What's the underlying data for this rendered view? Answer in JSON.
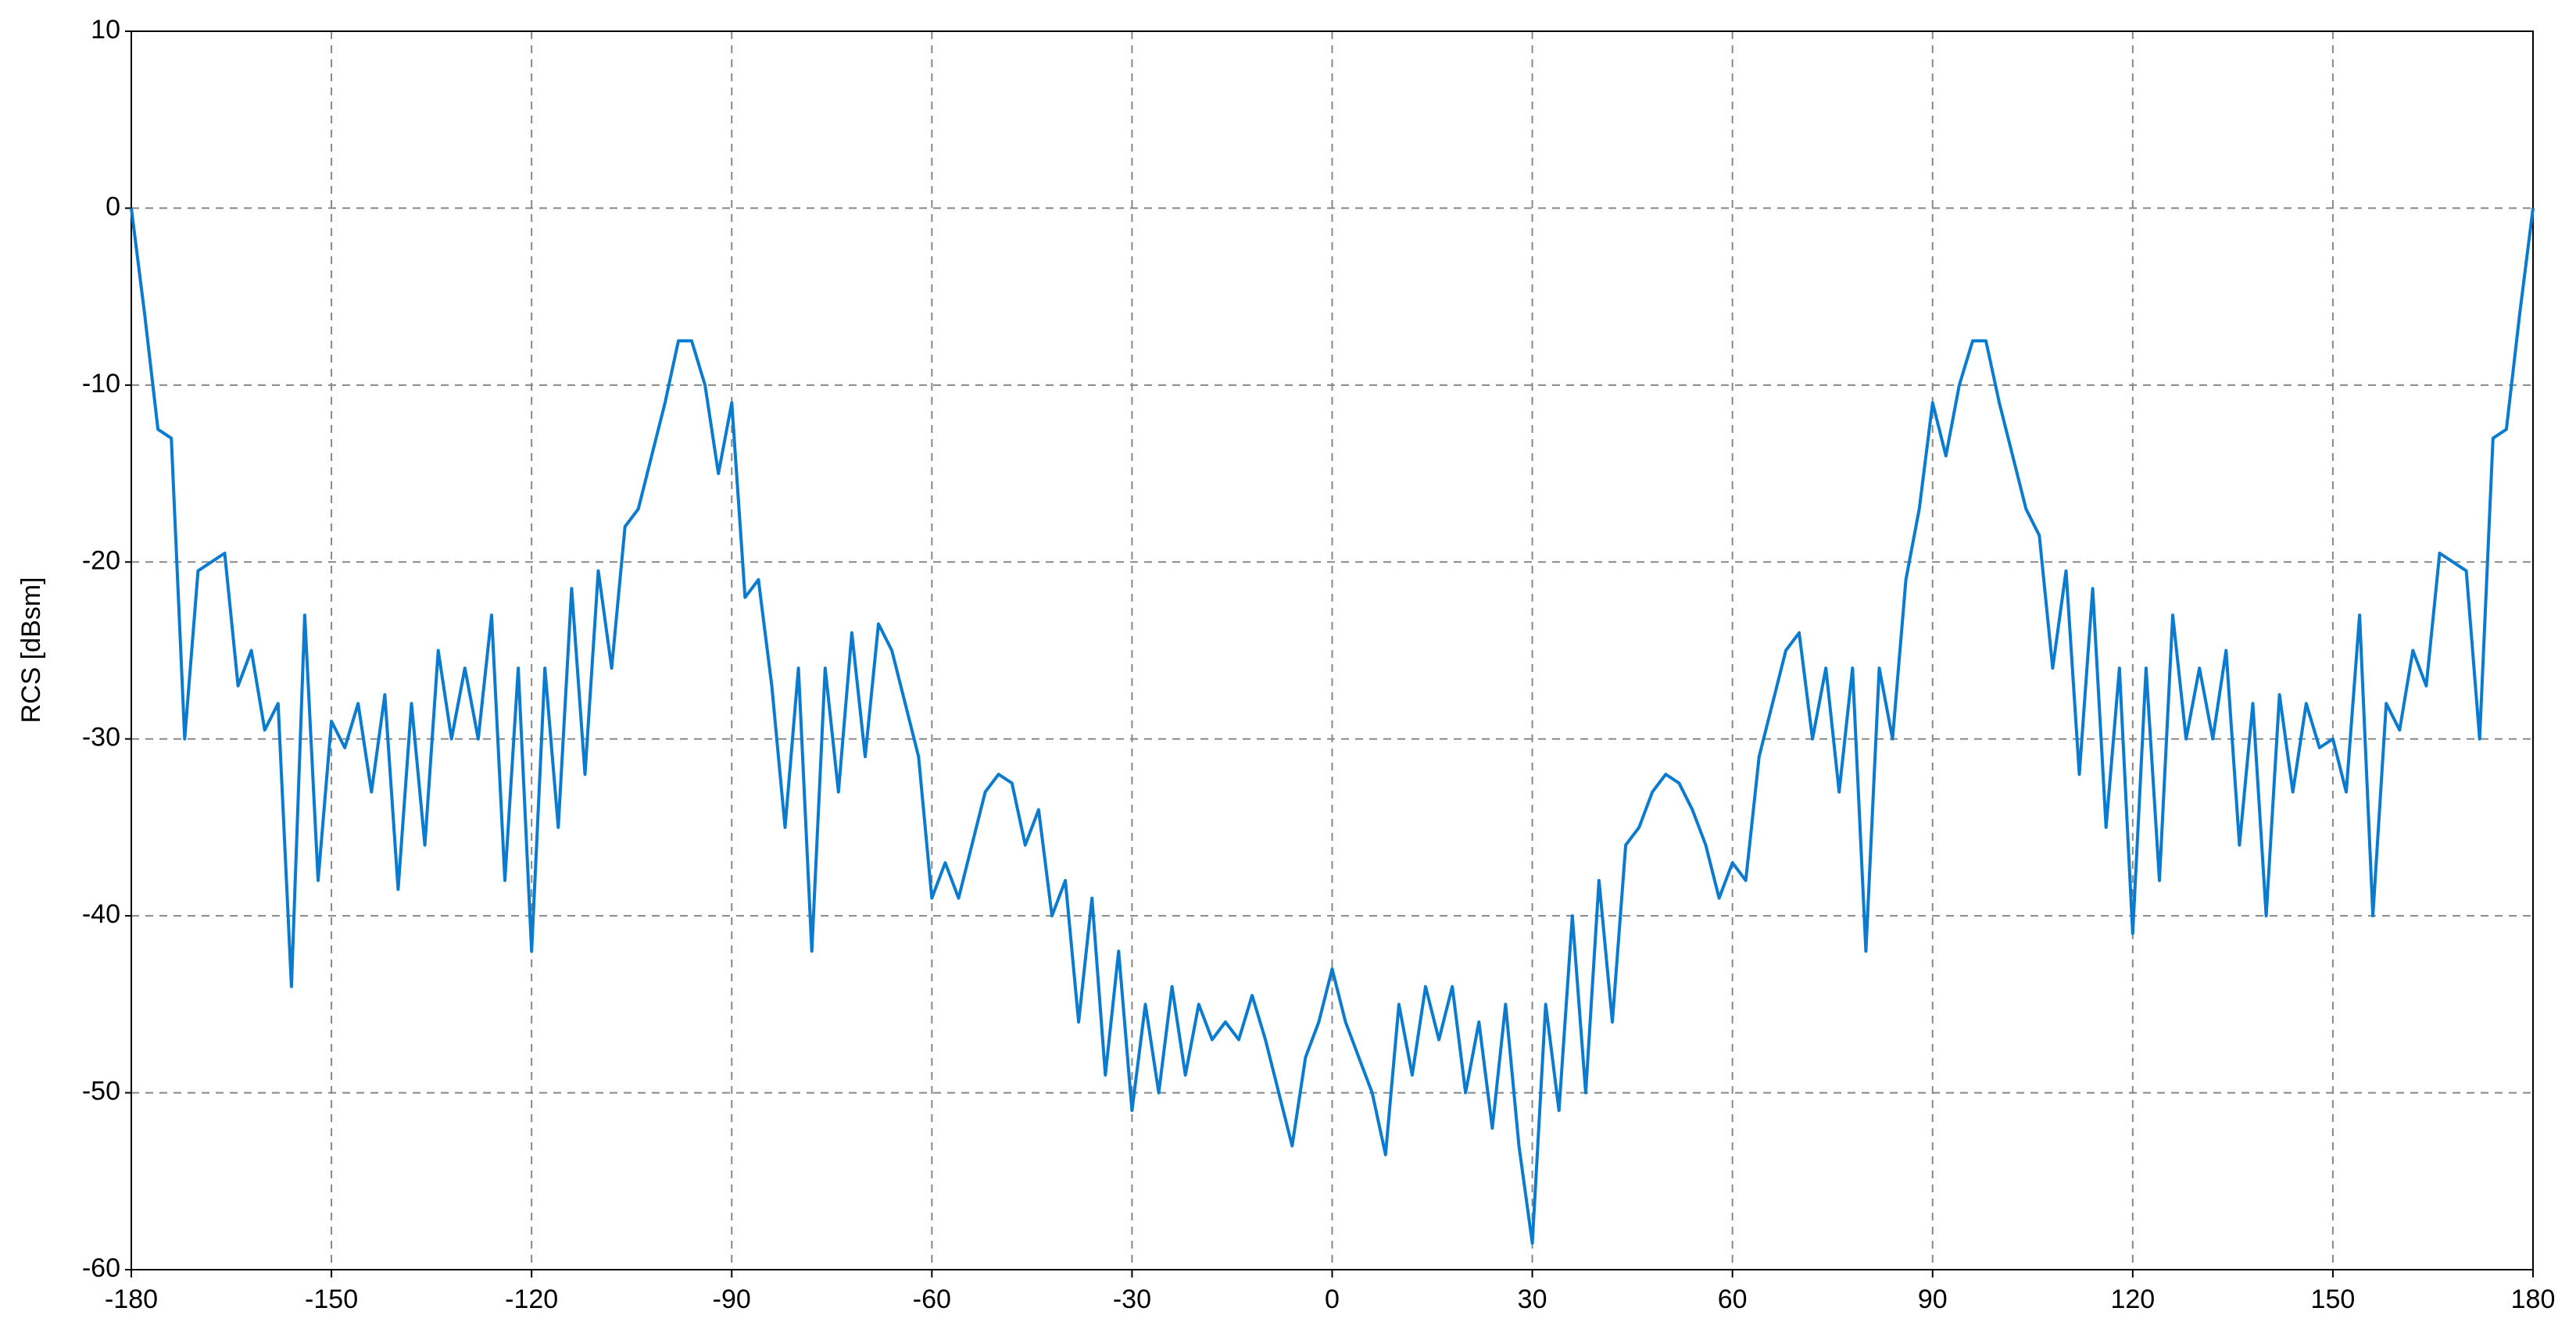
{
  "chart_data": {
    "type": "line",
    "y_label": "RCS [dBsm]",
    "x": [
      -180,
      -178,
      -176,
      -174,
      -172,
      -170,
      -168,
      -166,
      -164,
      -162,
      -160,
      -158,
      -156,
      -154,
      -152,
      -150,
      -148,
      -146,
      -144,
      -142,
      -140,
      -138,
      -136,
      -134,
      -132,
      -130,
      -128,
      -126,
      -124,
      -122,
      -120,
      -118,
      -116,
      -114,
      -112,
      -110,
      -108,
      -106,
      -104,
      -102,
      -100,
      -98,
      -96,
      -94,
      -92,
      -90,
      -88,
      -86,
      -84,
      -82,
      -80,
      -78,
      -76,
      -74,
      -72,
      -70,
      -68,
      -66,
      -64,
      -62,
      -60,
      -58,
      -56,
      -54,
      -52,
      -50,
      -48,
      -46,
      -44,
      -42,
      -40,
      -38,
      -36,
      -34,
      -32,
      -30,
      -28,
      -26,
      -24,
      -22,
      -20,
      -18,
      -16,
      -14,
      -12,
      -10,
      -8,
      -6,
      -4,
      -2,
      0,
      2,
      4,
      6,
      8,
      10,
      12,
      14,
      16,
      18,
      20,
      22,
      24,
      26,
      28,
      30,
      32,
      34,
      36,
      38,
      40,
      42,
      44,
      46,
      48,
      50,
      52,
      54,
      56,
      58,
      60,
      62,
      64,
      66,
      68,
      70,
      72,
      74,
      76,
      78,
      80,
      82,
      84,
      86,
      88,
      90,
      92,
      94,
      96,
      98,
      100,
      102,
      104,
      106,
      108,
      110,
      112,
      114,
      116,
      118,
      120,
      122,
      124,
      126,
      128,
      130,
      132,
      134,
      136,
      138,
      140,
      142,
      144,
      146,
      148,
      150,
      152,
      154,
      156,
      158,
      160,
      162,
      164,
      166,
      168,
      170,
      172,
      174,
      176,
      178,
      180
    ],
    "values": [
      0,
      -6,
      -12.5,
      -13,
      -30,
      -20.5,
      -20,
      -19.5,
      -27,
      -25,
      -29.5,
      -28,
      -44,
      -23,
      -38,
      -29,
      -30.5,
      -28,
      -33,
      -27.5,
      -38.5,
      -28,
      -36,
      -25,
      -30,
      -26,
      -30,
      -23,
      -38,
      -26,
      -42,
      -26,
      -35,
      -21.5,
      -32,
      -20.5,
      -26,
      -18,
      -17,
      -14,
      -11,
      -7.5,
      -7.5,
      -10,
      -15,
      -11,
      -22,
      -21,
      -27,
      -35,
      -26,
      -42,
      -26,
      -33,
      -24,
      -31,
      -23.5,
      -25,
      -28,
      -31,
      -39,
      -37,
      -39,
      -36,
      -33,
      -32,
      -32.5,
      -36,
      -34,
      -40,
      -38,
      -46,
      -39,
      -49,
      -42,
      -51,
      -45,
      -50,
      -44,
      -49,
      -45,
      -47,
      -46,
      -47,
      -44.5,
      -47,
      -50,
      -53,
      -48,
      -46,
      -43,
      -46,
      -48,
      -50,
      -53.5,
      -45,
      -49,
      -44,
      -47,
      -44,
      -50,
      -46,
      -52,
      -45,
      -53,
      -58.5,
      -45,
      -51,
      -40,
      -50,
      -38,
      -46,
      -36,
      -35,
      -33,
      -32,
      -32.5,
      -34,
      -36,
      -39,
      -37,
      -38,
      -31,
      -28,
      -25,
      -24,
      -30,
      -26,
      -33,
      -26,
      -42,
      -26,
      -30,
      -21,
      -17,
      -11,
      -14,
      -10,
      -7.5,
      -7.5,
      -11,
      -14,
      -17,
      -18.5,
      -26,
      -20.5,
      -32,
      -21.5,
      -35,
      -26,
      -41,
      -26,
      -38,
      -23,
      -30,
      -26,
      -30,
      -25,
      -36,
      -28,
      -40,
      -27.5,
      -33,
      -28,
      -30.5,
      -30,
      -33,
      -23,
      -40,
      -28,
      -29.5,
      -25,
      -27,
      -19.5,
      -20,
      -20.5,
      -30,
      -13,
      -12.5,
      -6,
      0
    ],
    "color": "#0a7bcf",
    "xlim": [
      -180,
      180
    ],
    "xticks": [
      -180,
      -150,
      -120,
      -90,
      -60,
      -30,
      0,
      30,
      60,
      90,
      120,
      150,
      180
    ],
    "ylim": [
      -60,
      10
    ],
    "yticks": [
      -60,
      -50,
      -40,
      -30,
      -20,
      -10,
      0,
      10
    ],
    "grid": true
  }
}
